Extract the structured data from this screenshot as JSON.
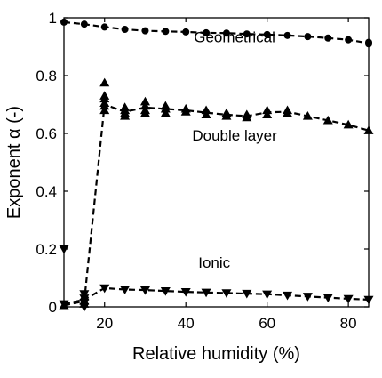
{
  "chart_data": {
    "type": "scatter",
    "xlabel": "Relative humidity (%)",
    "ylabel": "Exponent α (-)",
    "xlim": [
      10,
      85
    ],
    "ylim": [
      0,
      1
    ],
    "xticks": [
      20,
      40,
      60,
      80
    ],
    "yticks": [
      0,
      0.2,
      0.4,
      0.6,
      0.8,
      1
    ],
    "ytick_labels": [
      "0",
      "0.2",
      "0.4",
      "0.6",
      "0.8",
      "1"
    ],
    "grid": false,
    "line_style": "dashed",
    "series_color": "#000000",
    "series": [
      {
        "name": "Geometrical",
        "marker": "circle",
        "points": [
          [
            10,
            0.985
          ],
          [
            15,
            0.978
          ],
          [
            20,
            0.968
          ],
          [
            25,
            0.96
          ],
          [
            30,
            0.955
          ],
          [
            35,
            0.953
          ],
          [
            40,
            0.951
          ],
          [
            45,
            0.948
          ],
          [
            50,
            0.947
          ],
          [
            55,
            0.944
          ],
          [
            60,
            0.942
          ],
          [
            65,
            0.939
          ],
          [
            70,
            0.935
          ],
          [
            75,
            0.93
          ],
          [
            80,
            0.924
          ],
          [
            85,
            0.915
          ],
          [
            85,
            0.91
          ]
        ],
        "line": [
          [
            10,
            0.985
          ],
          [
            15,
            0.978
          ],
          [
            20,
            0.968
          ],
          [
            25,
            0.96
          ],
          [
            30,
            0.955
          ],
          [
            35,
            0.953
          ],
          [
            40,
            0.951
          ],
          [
            45,
            0.948
          ],
          [
            50,
            0.947
          ],
          [
            55,
            0.944
          ],
          [
            60,
            0.942
          ],
          [
            65,
            0.939
          ],
          [
            70,
            0.935
          ],
          [
            75,
            0.93
          ],
          [
            80,
            0.924
          ],
          [
            85,
            0.912
          ]
        ]
      },
      {
        "name": "Double layer",
        "marker": "triangle-up",
        "points": [
          [
            10,
            0.005
          ],
          [
            15,
            0.01
          ],
          [
            15,
            0.02
          ],
          [
            15,
            0.035
          ],
          [
            20,
            0.68
          ],
          [
            20,
            0.695
          ],
          [
            20,
            0.705
          ],
          [
            20,
            0.72
          ],
          [
            20,
            0.73
          ],
          [
            20,
            0.775
          ],
          [
            25,
            0.66
          ],
          [
            25,
            0.67
          ],
          [
            25,
            0.68
          ],
          [
            25,
            0.69
          ],
          [
            30,
            0.67
          ],
          [
            30,
            0.68
          ],
          [
            30,
            0.695
          ],
          [
            30,
            0.71
          ],
          [
            35,
            0.67
          ],
          [
            35,
            0.685
          ],
          [
            35,
            0.695
          ],
          [
            40,
            0.675
          ],
          [
            40,
            0.685
          ],
          [
            45,
            0.665
          ],
          [
            45,
            0.68
          ],
          [
            50,
            0.66
          ],
          [
            50,
            0.67
          ],
          [
            55,
            0.655
          ],
          [
            55,
            0.665
          ],
          [
            60,
            0.665
          ],
          [
            60,
            0.68
          ],
          [
            65,
            0.67
          ],
          [
            65,
            0.68
          ],
          [
            70,
            0.66
          ],
          [
            75,
            0.645
          ],
          [
            80,
            0.63
          ],
          [
            85,
            0.61
          ]
        ],
        "line": [
          [
            10,
            0.005
          ],
          [
            15,
            0.02
          ],
          [
            20,
            0.7
          ],
          [
            25,
            0.675
          ],
          [
            30,
            0.69
          ],
          [
            35,
            0.685
          ],
          [
            40,
            0.68
          ],
          [
            45,
            0.672
          ],
          [
            50,
            0.665
          ],
          [
            55,
            0.66
          ],
          [
            60,
            0.673
          ],
          [
            65,
            0.675
          ],
          [
            70,
            0.66
          ],
          [
            75,
            0.645
          ],
          [
            80,
            0.63
          ],
          [
            85,
            0.61
          ]
        ]
      },
      {
        "name": "Ionic",
        "marker": "triangle-down",
        "points": [
          [
            10,
            0.2
          ],
          [
            10,
            0.01
          ],
          [
            15,
            0.0
          ],
          [
            15,
            0.015
          ],
          [
            15,
            0.03
          ],
          [
            15,
            0.045
          ],
          [
            20,
            0.065
          ],
          [
            25,
            0.06
          ],
          [
            30,
            0.058
          ],
          [
            35,
            0.055
          ],
          [
            40,
            0.052
          ],
          [
            45,
            0.05
          ],
          [
            50,
            0.048
          ],
          [
            55,
            0.046
          ],
          [
            60,
            0.044
          ],
          [
            65,
            0.04
          ],
          [
            70,
            0.036
          ],
          [
            75,
            0.032
          ],
          [
            80,
            0.028
          ],
          [
            85,
            0.025
          ]
        ],
        "line": [
          [
            10,
            0.01
          ],
          [
            15,
            0.025
          ],
          [
            20,
            0.065
          ],
          [
            25,
            0.06
          ],
          [
            30,
            0.058
          ],
          [
            35,
            0.055
          ],
          [
            40,
            0.052
          ],
          [
            45,
            0.05
          ],
          [
            50,
            0.048
          ],
          [
            55,
            0.046
          ],
          [
            60,
            0.044
          ],
          [
            65,
            0.04
          ],
          [
            70,
            0.036
          ],
          [
            75,
            0.032
          ],
          [
            80,
            0.028
          ],
          [
            85,
            0.025
          ]
        ]
      }
    ],
    "annotations": [
      {
        "text": "Geometrical",
        "x": 52,
        "y": 0.915
      },
      {
        "text": "Double layer",
        "x": 52,
        "y": 0.575
      },
      {
        "text": "Ionic",
        "x": 47,
        "y": 0.135
      }
    ]
  }
}
